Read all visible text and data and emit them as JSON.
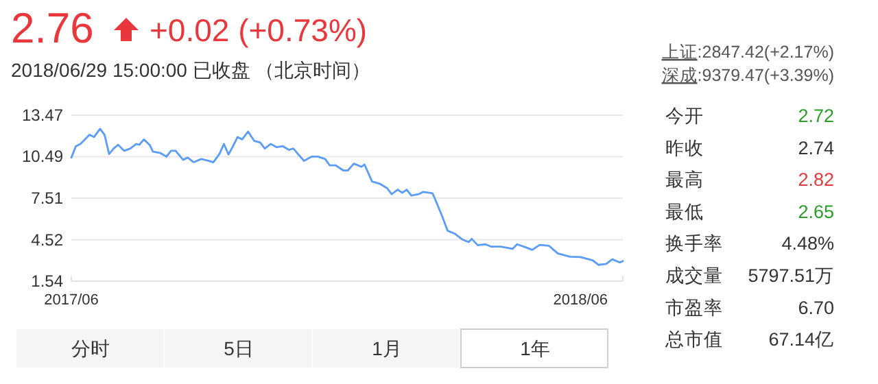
{
  "chart_data": [
    {
      "type": "line",
      "title": "2.76",
      "subtitle": "2018/06/29 15:00:00 已收盘 （北京时间）",
      "annotations": [
        "+0.02 (+0.73%)",
        "分时",
        "5日",
        "1月",
        "1年"
      ],
      "x": [
        "2017-06-29",
        "2017-07-02",
        "2017-07-05",
        "2017-07-08",
        "2017-07-11",
        "2017-07-14",
        "2017-07-18",
        "2017-07-21",
        "2017-07-24",
        "2017-07-27",
        "2017-07-30",
        "2017-08-03",
        "2017-08-07",
        "2017-08-11",
        "2017-08-13",
        "2017-08-16",
        "2017-08-20",
        "2017-08-22",
        "2017-08-27",
        "2017-08-31",
        "2017-09-03",
        "2017-09-06",
        "2017-09-11",
        "2017-09-14",
        "2017-09-18",
        "2017-09-23",
        "2017-09-28",
        "2017-10-01",
        "2017-10-05",
        "2017-10-08",
        "2017-10-11",
        "2017-10-14",
        "2017-10-17",
        "2017-10-20",
        "2017-10-24",
        "2017-10-28",
        "2017-11-01",
        "2017-11-04",
        "2017-11-08",
        "2017-11-12",
        "2017-11-16",
        "2017-11-20",
        "2017-11-23",
        "2017-11-26",
        "2017-11-30",
        "2017-12-05",
        "2017-12-09",
        "2017-12-14",
        "2017-12-17",
        "2017-12-21",
        "2017-12-26",
        "2017-12-29",
        "2018-01-02",
        "2018-01-07",
        "2018-01-09",
        "2018-01-14",
        "2018-01-19",
        "2018-01-24",
        "2018-01-27",
        "2018-01-31",
        "2018-02-03",
        "2018-02-06",
        "2018-02-09",
        "2018-02-14",
        "2018-02-17",
        "2018-02-23",
        "2018-02-24",
        "2018-03-01",
        "2018-03-05",
        "2018-03-10",
        "2018-03-15",
        "2018-03-19",
        "2018-03-21",
        "2018-03-25",
        "2018-03-30",
        "2018-04-03",
        "2018-04-09",
        "2018-04-14",
        "2018-04-17",
        "2018-04-20",
        "2018-04-26",
        "2018-04-30",
        "2018-05-05",
        "2018-05-11",
        "2018-05-17",
        "2018-05-25",
        "2018-06-01",
        "2018-06-09",
        "2018-06-13",
        "2018-06-18",
        "2018-06-22",
        "2018-06-27",
        "2018-06-29"
      ],
      "series": [
        {
          "color": "#5b9cf6",
          "values": [
            10.42,
            11.24,
            11.4,
            11.73,
            12.06,
            11.9,
            12.49,
            12.06,
            10.68,
            11.07,
            11.34,
            10.91,
            11.07,
            11.4,
            11.34,
            11.73,
            11.31,
            10.85,
            10.75,
            10.49,
            10.91,
            10.91,
            10.26,
            10.42,
            10.09,
            10.32,
            10.19,
            10.09,
            10.68,
            11.4,
            10.65,
            11.24,
            11.9,
            11.73,
            12.29,
            11.63,
            11.5,
            11.07,
            11.4,
            11.17,
            11.24,
            10.98,
            11.07,
            10.68,
            10.19,
            10.49,
            10.49,
            10.32,
            9.86,
            9.86,
            9.5,
            9.5,
            9.99,
            9.76,
            9.93,
            8.71,
            8.55,
            8.22,
            7.8,
            8.12,
            7.89,
            8.12,
            7.7,
            7.8,
            7.96,
            7.86,
            7.63,
            6.32,
            5.17,
            4.94,
            4.52,
            4.35,
            4.58,
            4.12,
            4.19,
            4.02,
            4.02,
            3.93,
            3.86,
            4.19,
            3.96,
            3.79,
            4.15,
            4.09,
            3.53,
            3.3,
            3.27,
            3.04,
            2.71,
            2.78,
            3.11,
            2.88,
            2.98
          ]
        }
      ],
      "xlim": [
        "2017-06-29",
        "2018-06-29"
      ],
      "xticks": [
        {
          "value": "2017-06-29",
          "label": "2017/06"
        },
        {
          "value": "2018-06-01",
          "label": "2018/06"
        }
      ],
      "ylim": [
        1.54,
        13.47
      ],
      "yticks": [
        1.54,
        4.52,
        7.51,
        10.49,
        13.47
      ],
      "grid": "y"
    },
    {
      "type": "other",
      "annotations": [
        "上证:2847.42(+2.17%)",
        "深成:9379.47(+3.39%)",
        "今开",
        "2.72",
        "昨收",
        "2.74",
        "最高",
        "2.82",
        "最低",
        "2.65",
        "换手率",
        "4.48%",
        "成交量",
        "5797.51万",
        "市盈率",
        "6.70",
        "总市值",
        "67.14亿"
      ]
    }
  ]
}
